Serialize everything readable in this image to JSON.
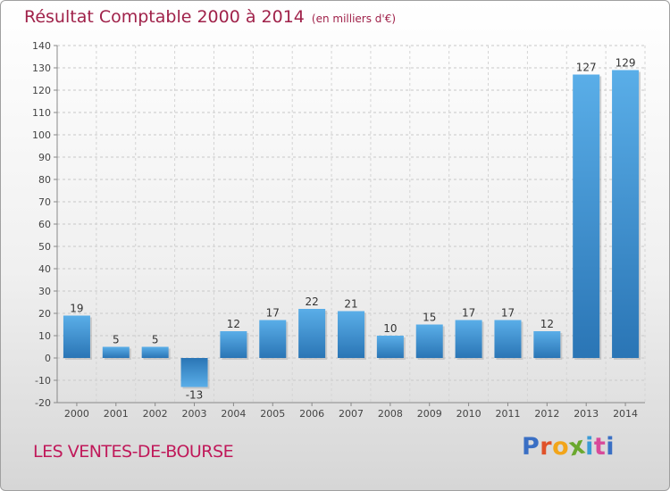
{
  "header": {
    "title": "Résultat Comptable 2000 à 2014",
    "unit": "(en milliers d'€)"
  },
  "footer": {
    "place": "LES VENTES-DE-BOURSE",
    "logo_letters": [
      "P",
      "r",
      "o",
      "x",
      "i",
      "t",
      "i"
    ],
    "logo_colors": [
      "#3a6fc4",
      "#e0522a",
      "#f2a51a",
      "#6aa82e",
      "#3a9bd6",
      "#d84a9a",
      "#3a6fc4"
    ]
  },
  "chart_data": {
    "type": "bar",
    "title": "Résultat Comptable 2000 à 2014",
    "subtitle": "(en milliers d'€)",
    "xlabel": "",
    "ylabel": "",
    "categories": [
      "2000",
      "2001",
      "2002",
      "2003",
      "2004",
      "2005",
      "2006",
      "2007",
      "2008",
      "2009",
      "2010",
      "2011",
      "2012",
      "2013",
      "2014"
    ],
    "values": [
      19,
      5,
      5,
      -13,
      12,
      17,
      22,
      21,
      10,
      15,
      17,
      17,
      12,
      127,
      129
    ],
    "value_labels": [
      "19",
      "5",
      "5",
      "-13",
      "12",
      "17",
      "22",
      "21",
      "10",
      "15",
      "17",
      "17",
      "12",
      "127",
      "129"
    ],
    "ylim": [
      -20,
      140
    ],
    "yticks": [
      -20,
      -10,
      0,
      10,
      20,
      30,
      40,
      50,
      60,
      70,
      80,
      90,
      100,
      110,
      120,
      130,
      140
    ],
    "ytick_labels": [
      "-20",
      "-10",
      "0",
      "10",
      "20",
      "30",
      "40",
      "50",
      "60",
      "70",
      "80",
      "90",
      "100",
      "110",
      "120",
      "130",
      "140"
    ],
    "grid": true,
    "bar_color": "#3d8fd1"
  }
}
